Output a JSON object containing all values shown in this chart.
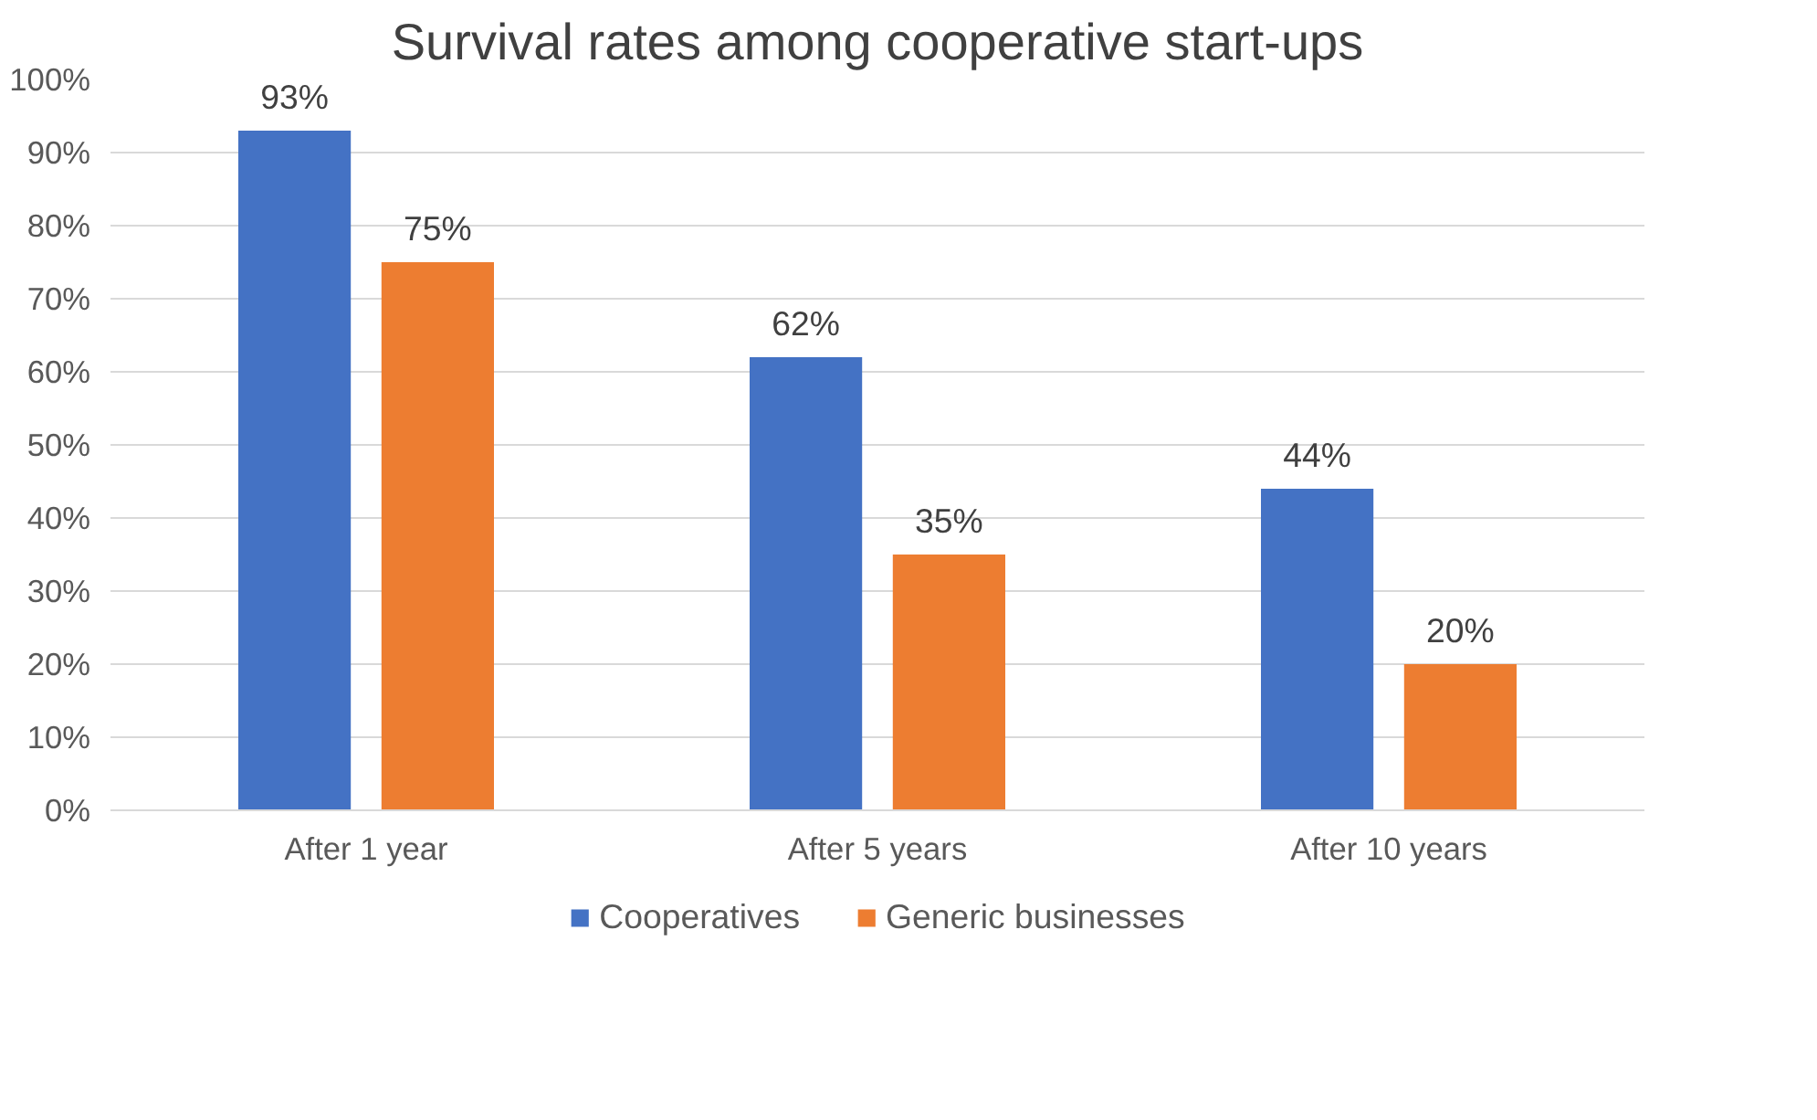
{
  "chart_data": {
    "type": "bar",
    "title": "Survival rates among cooperative start-ups",
    "categories": [
      "After 1 year",
      "After 5 years",
      "After 10 years"
    ],
    "series": [
      {
        "name": "Cooperatives",
        "color": "#4472c4",
        "values": [
          93,
          62,
          44
        ],
        "value_labels": [
          "93%",
          "62%",
          "44%"
        ]
      },
      {
        "name": "Generic businesses",
        "color": "#ed7d31",
        "values": [
          75,
          35,
          20
        ],
        "value_labels": [
          "75%",
          "35%",
          "20%"
        ]
      }
    ],
    "ylim": [
      0,
      100
    ],
    "yticks": [
      {
        "value": 0,
        "label": "0%"
      },
      {
        "value": 10,
        "label": "10%"
      },
      {
        "value": 20,
        "label": "20%"
      },
      {
        "value": 30,
        "label": "30%"
      },
      {
        "value": 40,
        "label": "40%"
      },
      {
        "value": 50,
        "label": "50%"
      },
      {
        "value": 60,
        "label": "60%"
      },
      {
        "value": 70,
        "label": "70%"
      },
      {
        "value": 80,
        "label": "80%"
      },
      {
        "value": 90,
        "label": "90%"
      },
      {
        "value": 100,
        "label": "100%"
      }
    ],
    "grid": "y",
    "legend": "bottom"
  }
}
